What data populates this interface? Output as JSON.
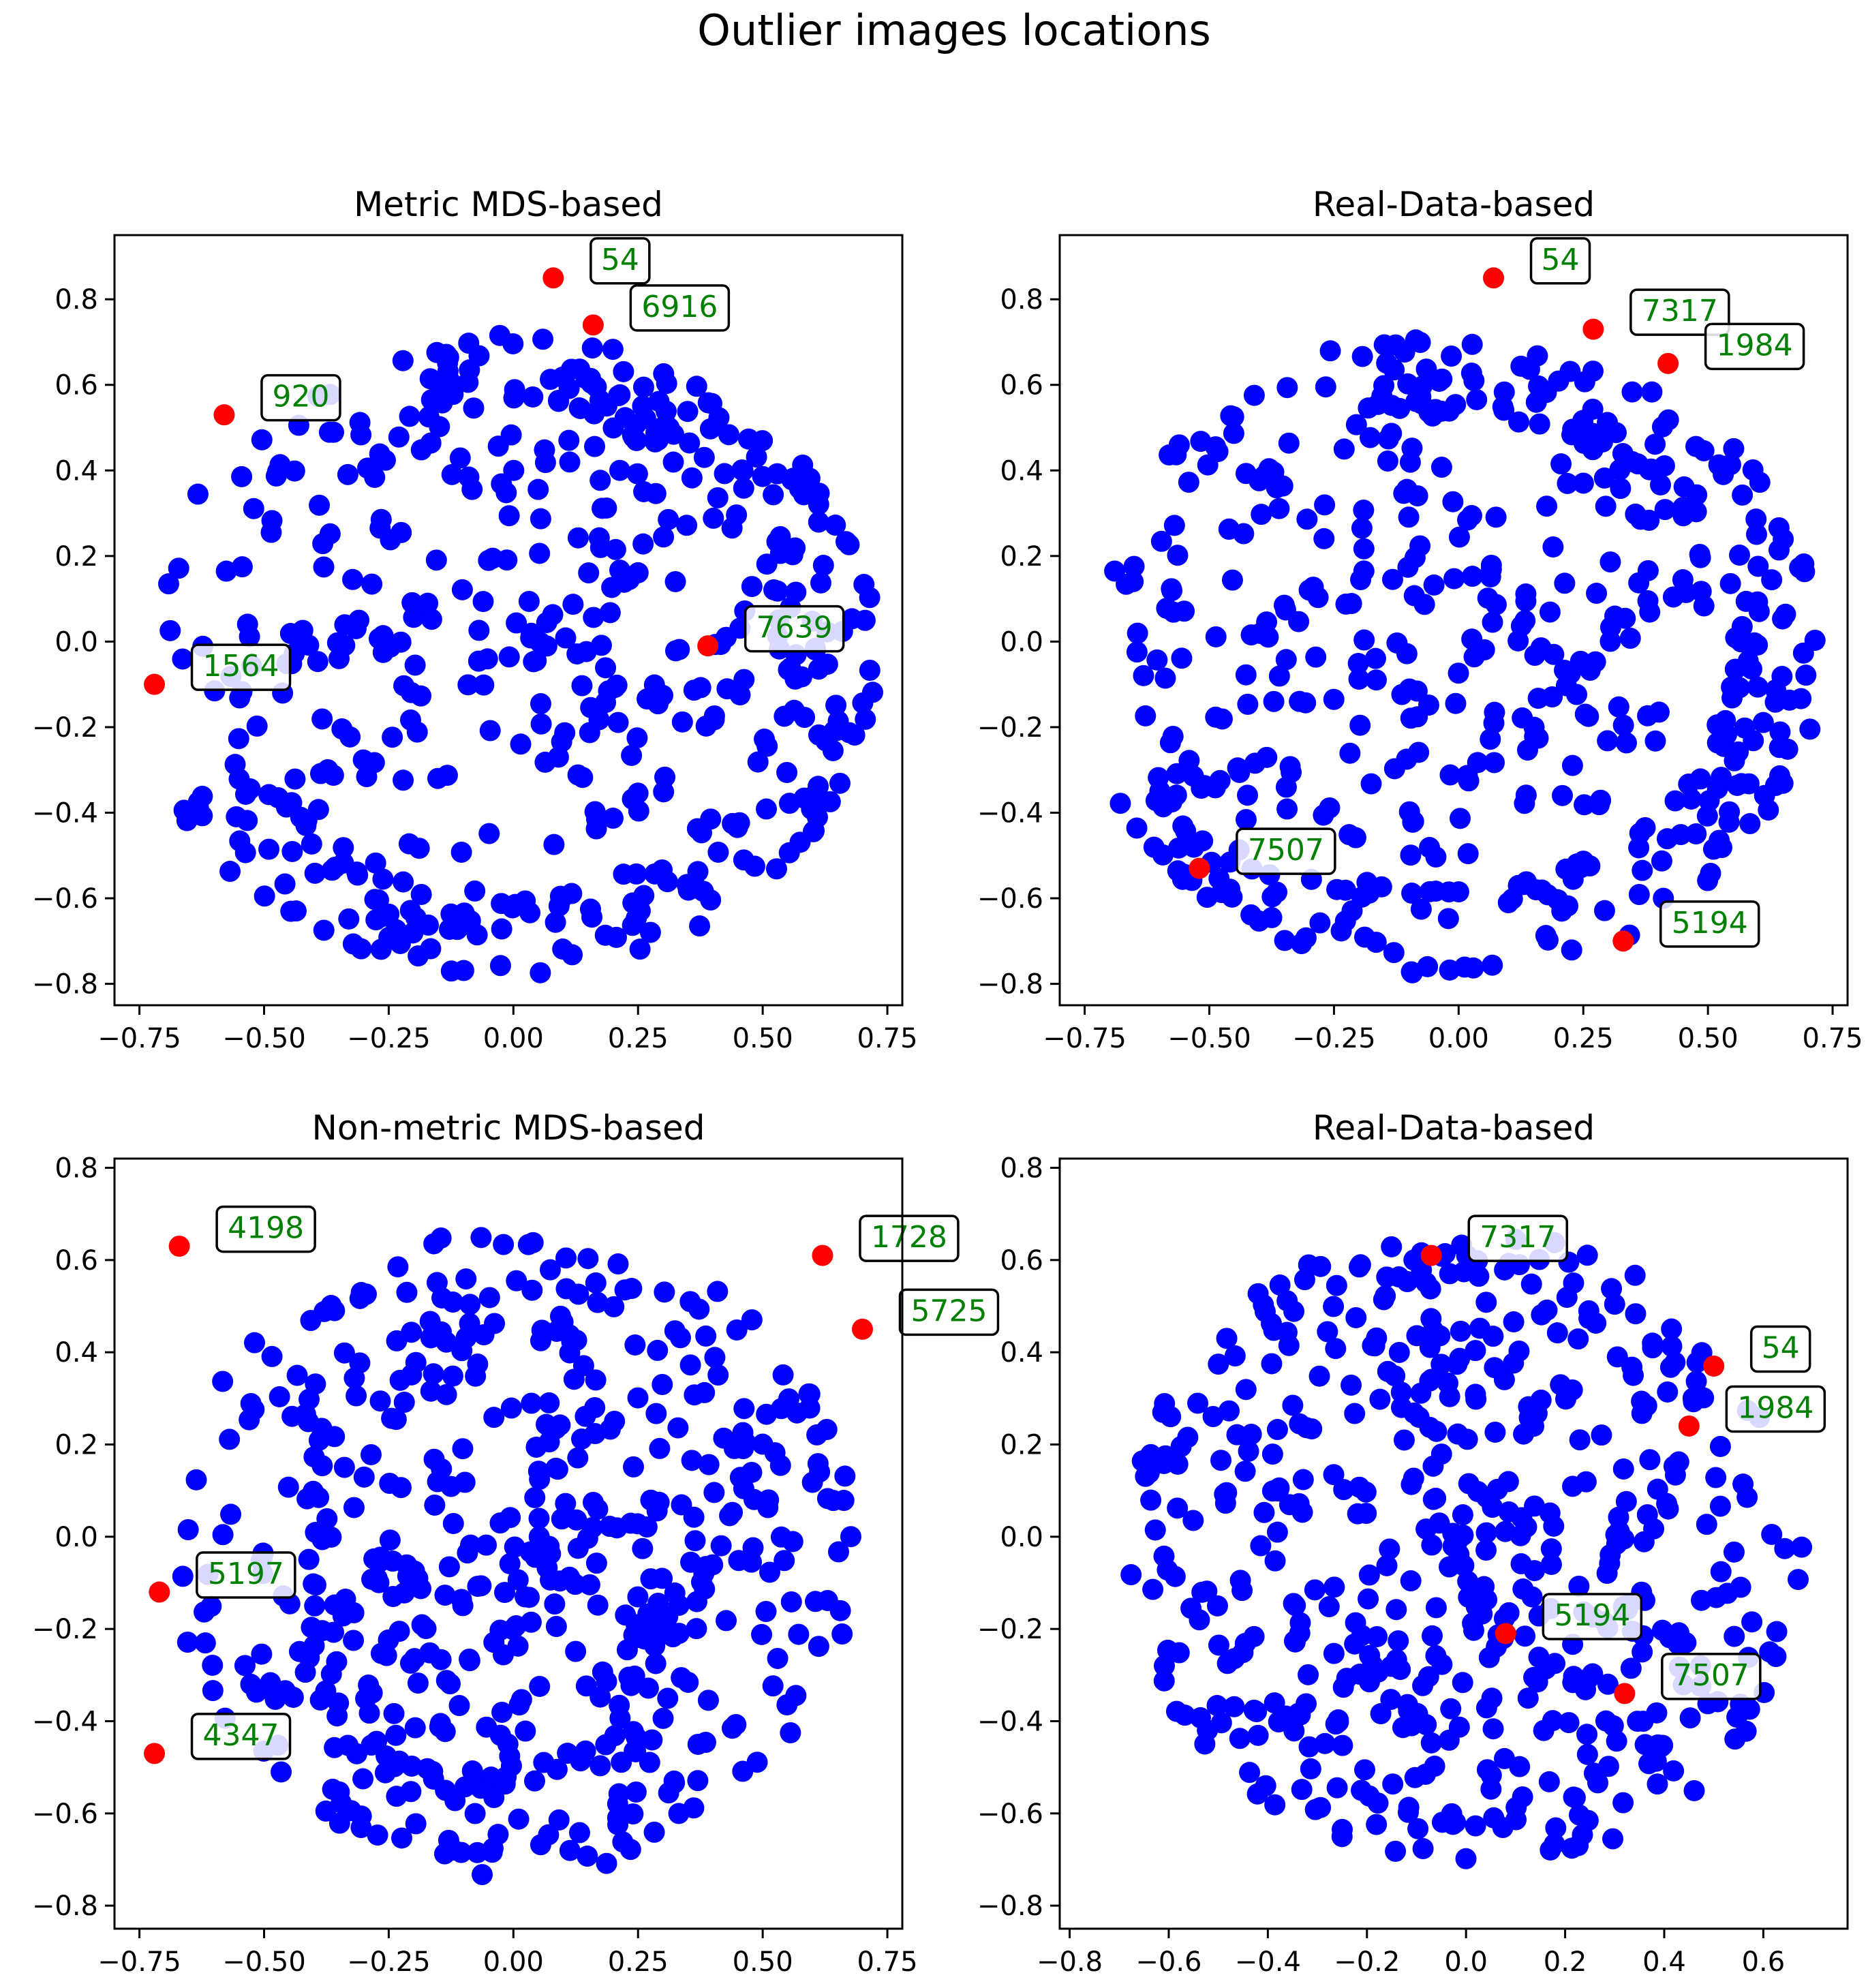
{
  "figure": {
    "title": "Outlier images locations"
  },
  "colors": {
    "points": "#0000ff",
    "outliers": "#ff0000",
    "label_text": "#008000",
    "label_box_edge": "#000000",
    "label_box_fill": "#ffffff"
  },
  "chart_data": [
    {
      "type": "scatter",
      "title": "Metric MDS-based",
      "xlim": [
        -0.8,
        0.78
      ],
      "ylim": [
        -0.85,
        0.95
      ],
      "xticks": [
        -0.75,
        -0.5,
        -0.25,
        0.0,
        0.25,
        0.5,
        0.75
      ],
      "xtick_labels": [
        "−0.75",
        "−0.50",
        "−0.25",
        "0.00",
        "0.25",
        "0.50",
        "0.75"
      ],
      "yticks": [
        -0.8,
        -0.6,
        -0.4,
        -0.2,
        0.0,
        0.2,
        0.4,
        0.6,
        0.8
      ],
      "ytick_labels": [
        "−0.8",
        "−0.6",
        "−0.4",
        "−0.2",
        "0.0",
        "0.2",
        "0.4",
        "0.6",
        "0.8"
      ],
      "layout": "ring",
      "outliers": [
        {
          "id": "54",
          "x": 0.08,
          "y": 0.85
        },
        {
          "id": "6916",
          "x": 0.16,
          "y": 0.74
        },
        {
          "id": "920",
          "x": -0.58,
          "y": 0.53
        },
        {
          "id": "7639",
          "x": 0.39,
          "y": -0.01
        },
        {
          "id": "1564",
          "x": -0.72,
          "y": -0.1
        }
      ]
    },
    {
      "type": "scatter",
      "title": "Real-Data-based",
      "xlim": [
        -0.8,
        0.78
      ],
      "ylim": [
        -0.85,
        0.95
      ],
      "xticks": [
        -0.75,
        -0.5,
        -0.25,
        0.0,
        0.25,
        0.5,
        0.75
      ],
      "xtick_labels": [
        "−0.75",
        "−0.50",
        "−0.25",
        "0.00",
        "0.25",
        "0.50",
        "0.75"
      ],
      "yticks": [
        -0.8,
        -0.6,
        -0.4,
        -0.2,
        0.0,
        0.2,
        0.4,
        0.6,
        0.8
      ],
      "ytick_labels": [
        "−0.8",
        "−0.6",
        "−0.4",
        "−0.2",
        "0.0",
        "0.2",
        "0.4",
        "0.6",
        "0.8"
      ],
      "layout": "ring",
      "outliers": [
        {
          "id": "54",
          "x": 0.07,
          "y": 0.85
        },
        {
          "id": "7317",
          "x": 0.27,
          "y": 0.73
        },
        {
          "id": "1984",
          "x": 0.42,
          "y": 0.65
        },
        {
          "id": "7507",
          "x": -0.52,
          "y": -0.53
        },
        {
          "id": "5194",
          "x": 0.33,
          "y": -0.7
        }
      ]
    },
    {
      "type": "scatter",
      "title": "Non-metric MDS-based",
      "xlim": [
        -0.8,
        0.78
      ],
      "ylim": [
        -0.85,
        0.82
      ],
      "xticks": [
        -0.75,
        -0.5,
        -0.25,
        0.0,
        0.25,
        0.5,
        0.75
      ],
      "xtick_labels": [
        "−0.75",
        "−0.50",
        "−0.25",
        "0.00",
        "0.25",
        "0.50",
        "0.75"
      ],
      "yticks": [
        -0.8,
        -0.6,
        -0.4,
        -0.2,
        0.0,
        0.2,
        0.4,
        0.6,
        0.8
      ],
      "ytick_labels": [
        "−0.8",
        "−0.6",
        "−0.4",
        "−0.2",
        "0.0",
        "0.2",
        "0.4",
        "0.6",
        "0.8"
      ],
      "layout": "disk",
      "outliers": [
        {
          "id": "4198",
          "x": -0.67,
          "y": 0.63
        },
        {
          "id": "1728",
          "x": 0.62,
          "y": 0.61
        },
        {
          "id": "5725",
          "x": 0.7,
          "y": 0.45
        },
        {
          "id": "5197",
          "x": -0.71,
          "y": -0.12
        },
        {
          "id": "4347",
          "x": -0.72,
          "y": -0.47
        }
      ]
    },
    {
      "type": "scatter",
      "title": "Real-Data-based",
      "xlim": [
        -0.82,
        0.77
      ],
      "ylim": [
        -0.85,
        0.82
      ],
      "xticks": [
        -0.8,
        -0.6,
        -0.4,
        -0.2,
        0.0,
        0.2,
        0.4,
        0.6
      ],
      "xtick_labels": [
        "−0.8",
        "−0.6",
        "−0.4",
        "−0.2",
        "0.0",
        "0.2",
        "0.4",
        "0.6"
      ],
      "yticks": [
        -0.8,
        -0.6,
        -0.4,
        -0.2,
        0.0,
        0.2,
        0.4,
        0.6,
        0.8
      ],
      "ytick_labels": [
        "−0.8",
        "−0.6",
        "−0.4",
        "−0.2",
        "0.0",
        "0.2",
        "0.4",
        "0.6",
        "0.8"
      ],
      "layout": "disk",
      "outliers": [
        {
          "id": "7317",
          "x": -0.07,
          "y": 0.61
        },
        {
          "id": "54",
          "x": 0.5,
          "y": 0.37
        },
        {
          "id": "1984",
          "x": 0.45,
          "y": 0.24
        },
        {
          "id": "5194",
          "x": 0.08,
          "y": -0.21
        },
        {
          "id": "7507",
          "x": 0.32,
          "y": -0.34
        }
      ]
    }
  ]
}
